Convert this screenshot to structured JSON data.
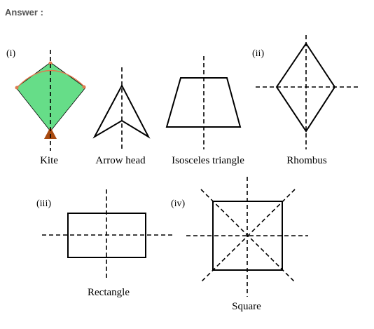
{
  "heading": "Answer :",
  "sections": {
    "i": "(i)",
    "ii": "(ii)",
    "iii": "(iii)",
    "iv": "(iv)"
  },
  "captions": {
    "kite": "Kite",
    "arrow_head": "Arrow head",
    "isosceles": "Isosceles triangle",
    "rhombus": "Rhombus",
    "rectangle": "Rectangle",
    "square": "Square"
  },
  "colors": {
    "kite_fill": "#66dd88",
    "kite_edge": "#e07b50",
    "kite_tail": "#a84a10"
  }
}
